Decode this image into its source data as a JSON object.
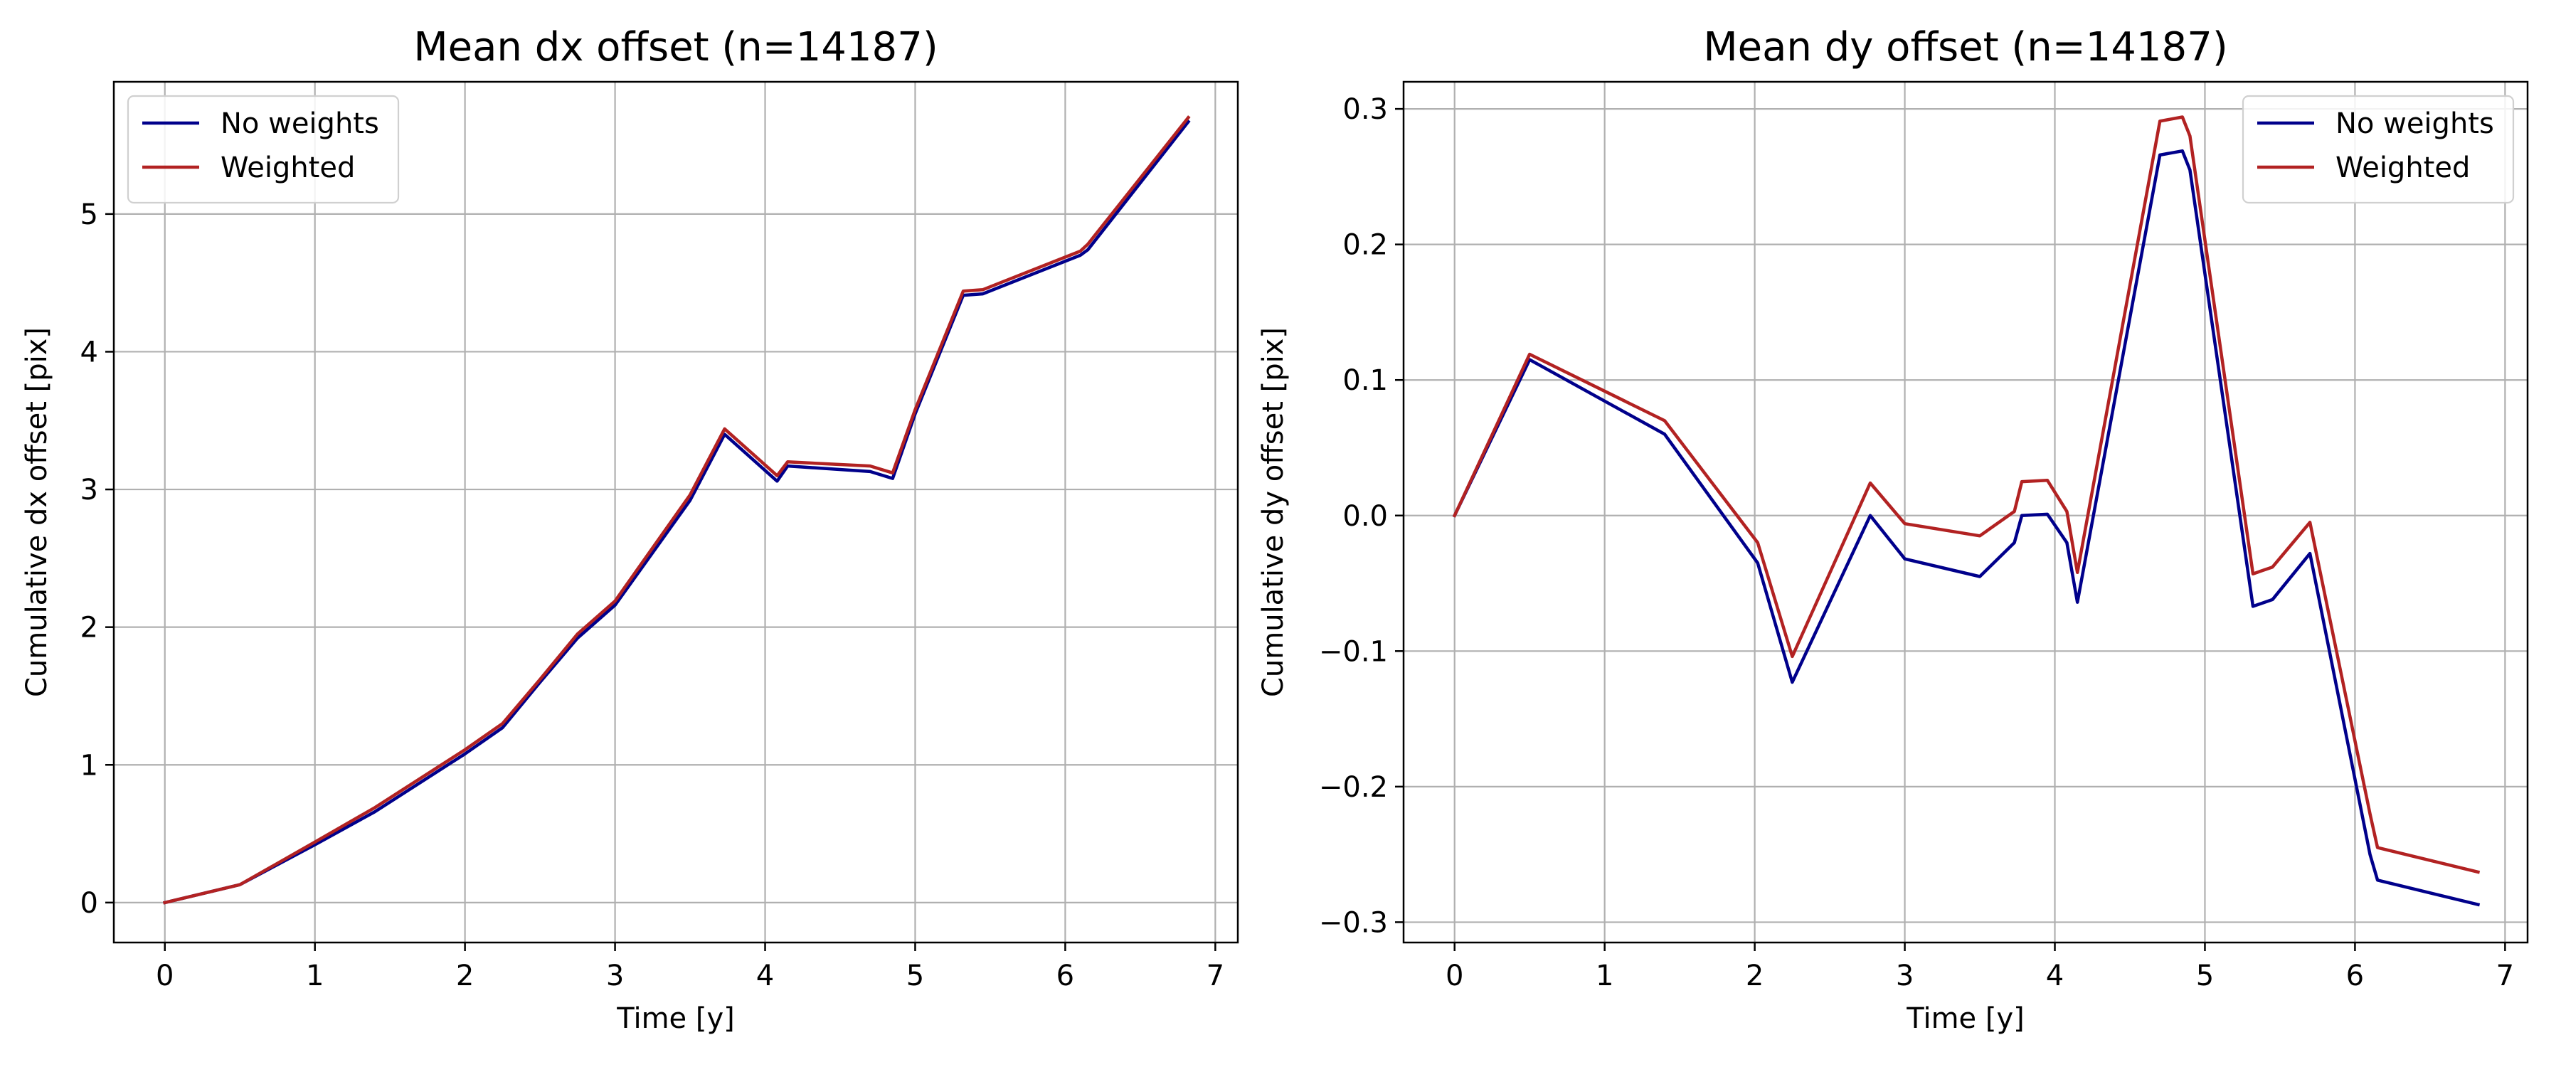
{
  "chart_data": [
    {
      "type": "line",
      "title": "Mean dx offset (n=14187)",
      "xlabel": "Time [y]",
      "ylabel": "Cumulative dx offset [pix]",
      "xlim": [
        -0.34,
        7.15
      ],
      "ylim": [
        -0.29,
        5.96
      ],
      "xticks": [
        0,
        1,
        2,
        3,
        4,
        5,
        6,
        7
      ],
      "xtick_labels": [
        "0",
        "1",
        "2",
        "3",
        "4",
        "5",
        "6",
        "7"
      ],
      "yticks": [
        0,
        1,
        2,
        3,
        4,
        5
      ],
      "ytick_labels": [
        "0",
        "1",
        "2",
        "3",
        "4",
        "5"
      ],
      "grid": true,
      "legend_position": "upper-left",
      "series": [
        {
          "name": "No weights",
          "color": "#00008B",
          "x": [
            0,
            0.5,
            1.0,
            1.4,
            2.0,
            2.25,
            2.5,
            2.75,
            3.0,
            3.5,
            3.73,
            4.08,
            4.15,
            4.7,
            4.85,
            5.0,
            5.32,
            5.45,
            6.1,
            6.15,
            6.82
          ],
          "y": [
            0,
            0.13,
            0.42,
            0.66,
            1.08,
            1.27,
            1.6,
            1.92,
            2.16,
            2.92,
            3.4,
            3.06,
            3.17,
            3.13,
            3.08,
            3.55,
            4.41,
            4.42,
            4.7,
            4.74,
            5.67
          ]
        },
        {
          "name": "Weighted",
          "color": "#B22222",
          "x": [
            0,
            0.5,
            1.0,
            1.4,
            2.0,
            2.25,
            2.5,
            2.75,
            3.0,
            3.5,
            3.73,
            4.08,
            4.15,
            4.7,
            4.85,
            5.0,
            5.32,
            5.45,
            6.1,
            6.15,
            6.82
          ],
          "y": [
            0,
            0.13,
            0.44,
            0.69,
            1.11,
            1.3,
            1.62,
            1.95,
            2.19,
            2.96,
            3.44,
            3.1,
            3.2,
            3.17,
            3.12,
            3.58,
            4.44,
            4.45,
            4.73,
            4.78,
            5.7
          ]
        }
      ]
    },
    {
      "type": "line",
      "title": "Mean dy offset (n=14187)",
      "xlabel": "Time [y]",
      "ylabel": "Cumulative dy offset [pix]",
      "xlim": [
        -0.34,
        7.15
      ],
      "ylim": [
        -0.315,
        0.32
      ],
      "xticks": [
        0,
        1,
        2,
        3,
        4,
        5,
        6,
        7
      ],
      "xtick_labels": [
        "0",
        "1",
        "2",
        "3",
        "4",
        "5",
        "6",
        "7"
      ],
      "yticks": [
        -0.3,
        -0.2,
        -0.1,
        0.0,
        0.1,
        0.2,
        0.3
      ],
      "ytick_labels": [
        "−0.3",
        "−0.2",
        "−0.1",
        "0.0",
        "0.1",
        "0.2",
        "0.3"
      ],
      "grid": true,
      "legend_position": "upper-right",
      "series": [
        {
          "name": "No weights",
          "color": "#00008B",
          "x": [
            0,
            0.5,
            1.4,
            2.02,
            2.25,
            2.77,
            3.0,
            3.5,
            3.73,
            3.78,
            3.95,
            4.08,
            4.15,
            4.7,
            4.85,
            4.9,
            5.32,
            5.45,
            5.7,
            6.1,
            6.15,
            6.82
          ],
          "y": [
            0,
            0.115,
            0.06,
            -0.035,
            -0.123,
            0.0,
            -0.032,
            -0.045,
            -0.02,
            0.0,
            0.001,
            -0.02,
            -0.064,
            0.266,
            0.269,
            0.255,
            -0.067,
            -0.062,
            -0.028,
            -0.25,
            -0.269,
            -0.287
          ]
        },
        {
          "name": "Weighted",
          "color": "#B22222",
          "x": [
            0,
            0.5,
            1.4,
            2.02,
            2.25,
            2.77,
            3.0,
            3.5,
            3.73,
            3.78,
            3.95,
            4.08,
            4.15,
            4.7,
            4.85,
            4.9,
            5.32,
            5.45,
            5.7,
            6.1,
            6.15,
            6.82
          ],
          "y": [
            0,
            0.119,
            0.07,
            -0.02,
            -0.104,
            0.024,
            -0.006,
            -0.015,
            0.003,
            0.025,
            0.026,
            0.003,
            -0.042,
            0.291,
            0.294,
            0.28,
            -0.043,
            -0.038,
            -0.005,
            -0.22,
            -0.245,
            -0.263
          ]
        }
      ]
    }
  ]
}
